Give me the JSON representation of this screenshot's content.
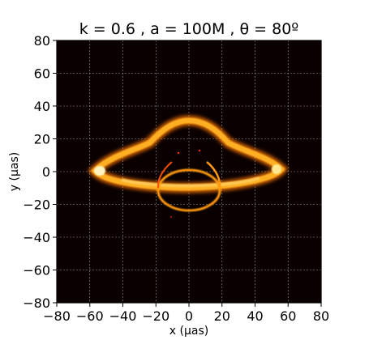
{
  "chart_data": {
    "type": "heatmap",
    "title": "k = 0.6 , a = 100M ,  θ = 80º",
    "xlabel": "x (μas)",
    "ylabel": "y (μas)",
    "xlim": [
      -80,
      80
    ],
    "ylim": [
      -80,
      80
    ],
    "xticks": [
      "−80",
      "−60",
      "−40",
      "−20",
      "0",
      "20",
      "40",
      "60",
      "80"
    ],
    "yticks": [
      "80",
      "60",
      "40",
      "20",
      "0",
      "−20",
      "−40",
      "−60",
      "−80"
    ],
    "grid": true,
    "colormap": "afmhot",
    "background_color": "#0b0000",
    "features": {
      "primary_ring": {
        "upper_arc_top_y": 31,
        "lower_edge_y": -9,
        "left_tip": [
          -56,
          0
        ],
        "right_tip": [
          55,
          1
        ]
      },
      "secondary_ring": {
        "center": [
          0,
          -12
        ],
        "radius_x": 19,
        "radius_y": 12,
        "bottom_y": -24
      }
    }
  }
}
